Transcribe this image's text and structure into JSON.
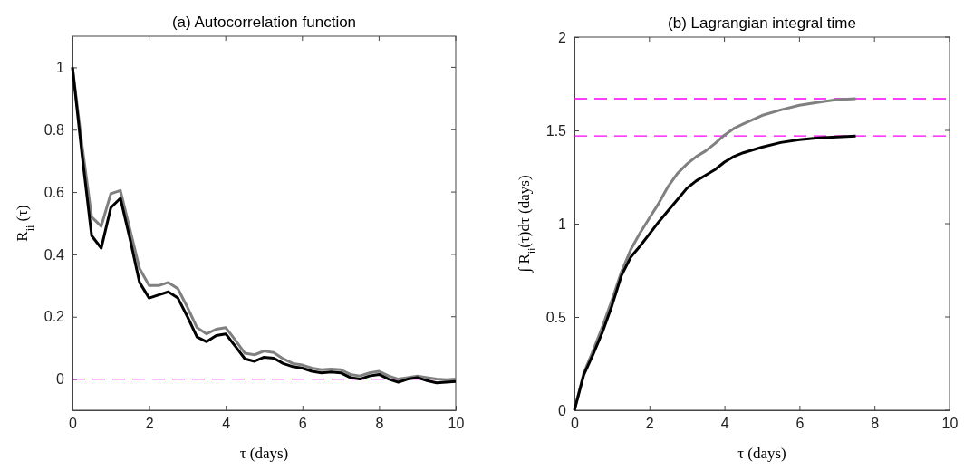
{
  "chart_data": [
    {
      "type": "line",
      "title": "(a) Autocorrelation function",
      "xlabel": "τ (days)",
      "ylabel": "R$_{ii}$ (τ)",
      "xlim": [
        0,
        10
      ],
      "xticks": [
        0,
        2,
        4,
        6,
        8,
        10
      ],
      "ylim": [
        -0.1,
        1.1
      ],
      "yticks": [
        0,
        0.2,
        0.4,
        0.6,
        0.8,
        1
      ],
      "line_style": "solid",
      "x": [
        0,
        0.25,
        0.5,
        0.75,
        1,
        1.25,
        1.5,
        1.75,
        2,
        2.25,
        2.5,
        2.75,
        3,
        3.25,
        3.5,
        3.75,
        4,
        4.25,
        4.5,
        4.75,
        5,
        5.25,
        5.5,
        5.75,
        6,
        6.25,
        6.5,
        6.75,
        7,
        7.25,
        7.5,
        7.75,
        8,
        8.25,
        8.5,
        8.75,
        9,
        9.25,
        9.5,
        9.75,
        10
      ],
      "series": [
        {
          "color": "#808080",
          "values": [
            1.0,
            0.75,
            0.52,
            0.49,
            0.595,
            0.605,
            0.48,
            0.355,
            0.3,
            0.3,
            0.31,
            0.29,
            0.23,
            0.165,
            0.145,
            0.16,
            0.165,
            0.125,
            0.083,
            0.078,
            0.09,
            0.085,
            0.065,
            0.05,
            0.045,
            0.035,
            0.03,
            0.032,
            0.03,
            0.015,
            0.01,
            0.02,
            0.025,
            0.01,
            0,
            0.005,
            0.01,
            0.005,
            0,
            -0.002,
            0
          ]
        },
        {
          "color": "#000000",
          "values": [
            1.0,
            0.72,
            0.46,
            0.42,
            0.55,
            0.58,
            0.45,
            0.31,
            0.26,
            0.27,
            0.28,
            0.26,
            0.2,
            0.135,
            0.12,
            0.14,
            0.145,
            0.105,
            0.065,
            0.057,
            0.07,
            0.067,
            0.05,
            0.04,
            0.035,
            0.025,
            0.02,
            0.023,
            0.02,
            0.005,
            0,
            0.01,
            0.015,
            0,
            -0.01,
            0,
            0.005,
            -0.005,
            -0.012,
            -0.01,
            -0.008
          ]
        }
      ],
      "ref_lines": [
        {
          "axis": "y",
          "value": 0,
          "color": "#ff00ff",
          "line_style": "dashed"
        }
      ]
    },
    {
      "type": "line",
      "title": "(b) Lagrangian integral time",
      "xlabel": "τ (days)",
      "ylabel": "∫ R$_{ii}$(τ)dτ (days)",
      "xlim": [
        0,
        10
      ],
      "xticks": [
        0,
        2,
        4,
        6,
        8,
        10
      ],
      "ylim": [
        0,
        2
      ],
      "yticks": [
        0,
        0.5,
        1,
        1.5,
        2
      ],
      "line_style": "solid",
      "x": [
        0,
        0.25,
        0.5,
        0.75,
        1,
        1.25,
        1.5,
        1.75,
        2,
        2.25,
        2.5,
        2.75,
        3,
        3.25,
        3.5,
        3.75,
        4,
        4.25,
        4.5,
        5,
        5.5,
        6,
        6.5,
        7,
        7.5
      ],
      "series": [
        {
          "color": "#808080",
          "values": [
            0,
            0.2,
            0.32,
            0.45,
            0.59,
            0.74,
            0.86,
            0.95,
            1.03,
            1.11,
            1.2,
            1.27,
            1.32,
            1.36,
            1.39,
            1.43,
            1.475,
            1.51,
            1.535,
            1.58,
            1.61,
            1.635,
            1.65,
            1.665,
            1.67
          ]
        },
        {
          "color": "#000000",
          "values": [
            0,
            0.19,
            0.3,
            0.42,
            0.56,
            0.72,
            0.82,
            0.88,
            0.945,
            1.01,
            1.07,
            1.13,
            1.19,
            1.23,
            1.26,
            1.29,
            1.33,
            1.36,
            1.38,
            1.41,
            1.435,
            1.45,
            1.46,
            1.465,
            1.47
          ]
        }
      ],
      "ref_lines": [
        {
          "axis": "y",
          "value": 1.67,
          "color": "#ff00ff",
          "line_style": "dashed"
        },
        {
          "axis": "y",
          "value": 1.47,
          "color": "#ff00ff",
          "line_style": "dashed"
        }
      ]
    }
  ]
}
